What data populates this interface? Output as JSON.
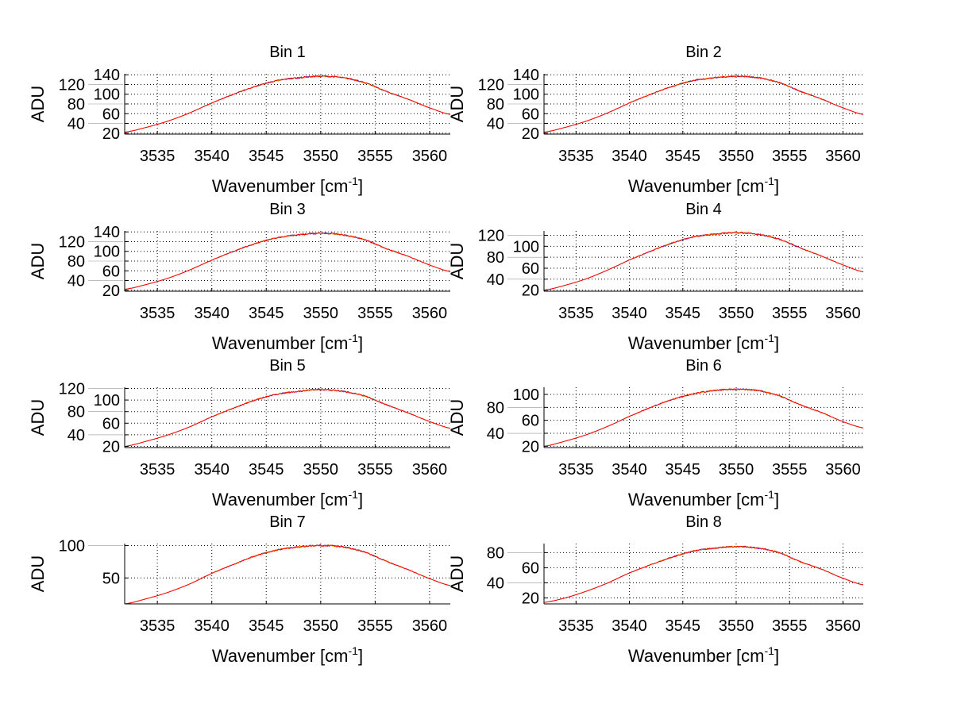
{
  "chart_data": [
    {
      "type": "line",
      "title": "Bin 1",
      "xlabel": "Wavenumber [cm-1]",
      "ylabel": "ADU",
      "xlim": [
        3532,
        3561.9
      ],
      "ylim": [
        18,
        142
      ],
      "xticks": [
        3535,
        3540,
        3545,
        3550,
        3555,
        3560
      ],
      "yticks": [
        20,
        40,
        60,
        80,
        100,
        120,
        140
      ],
      "grid": true,
      "x": [
        3532,
        3534,
        3536,
        3538,
        3540,
        3542,
        3544,
        3546,
        3548,
        3550,
        3552,
        3554,
        3556,
        3558,
        3560,
        3562
      ],
      "y": [
        22,
        32,
        45,
        62,
        82,
        100,
        116,
        128,
        134,
        137,
        134,
        124,
        106,
        90,
        72,
        58
      ]
    },
    {
      "type": "line",
      "title": "Bin 2",
      "xlabel": "Wavenumber [cm-1]",
      "ylabel": "ADU",
      "xlim": [
        3532,
        3561.9
      ],
      "ylim": [
        18,
        142
      ],
      "xticks": [
        3535,
        3540,
        3545,
        3550,
        3555,
        3560
      ],
      "yticks": [
        20,
        40,
        60,
        80,
        100,
        120,
        140
      ],
      "grid": true,
      "x": [
        3532,
        3534,
        3536,
        3538,
        3540,
        3542,
        3544,
        3546,
        3548,
        3550,
        3552,
        3554,
        3556,
        3558,
        3560,
        3562
      ],
      "y": [
        22,
        32,
        45,
        62,
        82,
        100,
        116,
        128,
        134,
        137,
        134,
        124,
        106,
        90,
        72,
        58
      ]
    },
    {
      "type": "line",
      "title": "Bin 3",
      "xlabel": "Wavenumber [cm-1]",
      "ylabel": "ADU",
      "xlim": [
        3532,
        3561.9
      ],
      "ylim": [
        18,
        142
      ],
      "xticks": [
        3535,
        3540,
        3545,
        3550,
        3555,
        3560
      ],
      "yticks": [
        20,
        40,
        60,
        80,
        100,
        120,
        140
      ],
      "grid": true,
      "x": [
        3532,
        3534,
        3536,
        3538,
        3540,
        3542,
        3544,
        3546,
        3548,
        3550,
        3552,
        3554,
        3556,
        3558,
        3560,
        3562
      ],
      "y": [
        22,
        32,
        45,
        62,
        82,
        100,
        116,
        128,
        134,
        137,
        134,
        124,
        106,
        90,
        72,
        58
      ]
    },
    {
      "type": "line",
      "title": "Bin 4",
      "xlabel": "Wavenumber [cm-1]",
      "ylabel": "ADU",
      "xlim": [
        3532,
        3561.9
      ],
      "ylim": [
        18,
        128
      ],
      "xticks": [
        3535,
        3540,
        3545,
        3550,
        3555,
        3560
      ],
      "yticks": [
        20,
        40,
        60,
        80,
        100,
        120
      ],
      "grid": true,
      "x": [
        3532,
        3534,
        3536,
        3538,
        3540,
        3542,
        3544,
        3546,
        3548,
        3550,
        3552,
        3554,
        3556,
        3558,
        3560,
        3562
      ],
      "y": [
        20,
        29,
        41,
        57,
        75,
        91,
        106,
        117,
        122,
        125,
        122,
        113,
        97,
        82,
        66,
        53
      ]
    },
    {
      "type": "line",
      "title": "Bin 5",
      "xlabel": "Wavenumber [cm-1]",
      "ylabel": "ADU",
      "xlim": [
        3532,
        3561.9
      ],
      "ylim": [
        18,
        122
      ],
      "xticks": [
        3535,
        3540,
        3545,
        3550,
        3555,
        3560
      ],
      "yticks": [
        20,
        40,
        60,
        80,
        100,
        120
      ],
      "grid": true,
      "x": [
        3532,
        3534,
        3536,
        3538,
        3540,
        3542,
        3544,
        3546,
        3548,
        3550,
        3552,
        3554,
        3556,
        3558,
        3560,
        3562
      ],
      "y": [
        20,
        29,
        40,
        54,
        71,
        86,
        100,
        110,
        115,
        118,
        115,
        107,
        92,
        78,
        63,
        51
      ]
    },
    {
      "type": "line",
      "title": "Bin 6",
      "xlabel": "Wavenumber [cm-1]",
      "ylabel": "ADU",
      "xlim": [
        3532,
        3561.9
      ],
      "ylim": [
        18,
        111
      ],
      "xticks": [
        3535,
        3540,
        3545,
        3550,
        3555,
        3560
      ],
      "yticks": [
        20,
        40,
        60,
        80,
        100
      ],
      "grid": true,
      "x": [
        3532,
        3534,
        3536,
        3538,
        3540,
        3542,
        3544,
        3546,
        3548,
        3550,
        3552,
        3554,
        3556,
        3558,
        3560,
        3562
      ],
      "y": [
        20,
        28,
        38,
        51,
        66,
        80,
        92,
        101,
        106,
        108,
        106,
        98,
        84,
        72,
        58,
        48
      ]
    },
    {
      "type": "line",
      "title": "Bin 7",
      "xlabel": "Wavenumber [cm-1]",
      "ylabel": "ADU",
      "xlim": [
        3532,
        3561.9
      ],
      "ylim": [
        10,
        103
      ],
      "xticks": [
        3535,
        3540,
        3545,
        3550,
        3555,
        3560
      ],
      "yticks": [
        50,
        100
      ],
      "grid": true,
      "x": [
        3532,
        3534,
        3536,
        3538,
        3540,
        3542,
        3544,
        3546,
        3548,
        3550,
        3552,
        3554,
        3556,
        3558,
        3560,
        3562
      ],
      "y": [
        10,
        18,
        28,
        41,
        57,
        71,
        84,
        93,
        98,
        100,
        98,
        90,
        76,
        63,
        49,
        38
      ]
    },
    {
      "type": "line",
      "title": "Bin 8",
      "xlabel": "Wavenumber [cm-1]",
      "ylabel": "ADU",
      "xlim": [
        3532,
        3561.9
      ],
      "ylim": [
        12,
        92
      ],
      "xticks": [
        3535,
        3540,
        3545,
        3550,
        3555,
        3560
      ],
      "yticks": [
        20,
        40,
        60,
        80
      ],
      "grid": true,
      "x": [
        3532,
        3534,
        3536,
        3538,
        3540,
        3542,
        3544,
        3546,
        3548,
        3550,
        3552,
        3554,
        3556,
        3558,
        3560,
        3562
      ],
      "y": [
        14,
        20,
        29,
        40,
        53,
        64,
        74,
        82,
        86,
        88,
        86,
        80,
        68,
        58,
        46,
        37
      ]
    }
  ],
  "colors": {
    "main": "#ff0000",
    "second": "#0000ff",
    "third": "#e6c800"
  }
}
